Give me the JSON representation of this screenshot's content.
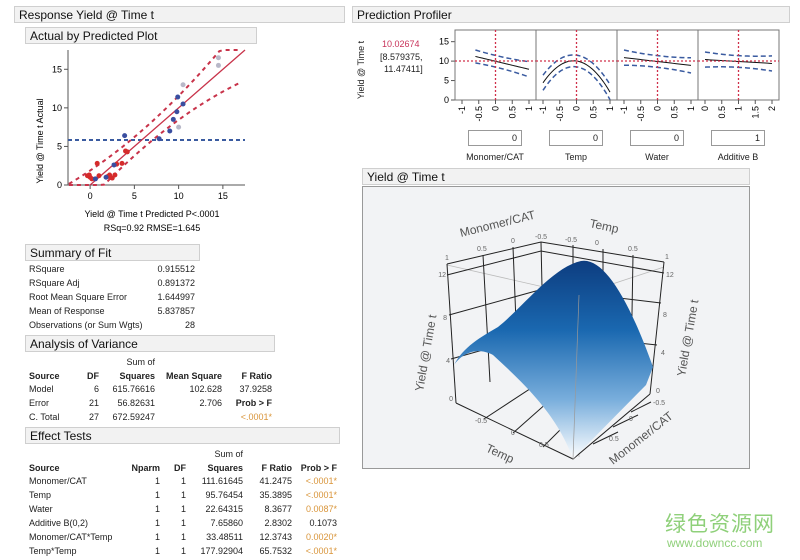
{
  "left": {
    "title": "Response Yield @ Time t",
    "plot_title": "Actual by Predicted Plot",
    "summary": {
      "title": "Summary of Fit",
      "rows": [
        {
          "label": "RSquare",
          "value": "0.915512"
        },
        {
          "label": "RSquare Adj",
          "value": "0.891372"
        },
        {
          "label": "Root Mean Square Error",
          "value": "1.644997"
        },
        {
          "label": "Mean of Response",
          "value": "5.837857"
        },
        {
          "label": "Observations (or Sum Wgts)",
          "value": "28"
        }
      ]
    },
    "anova": {
      "title": "Analysis of Variance",
      "sum_of": "Sum of",
      "headers": [
        "Source",
        "DF",
        "Squares",
        "Mean Square",
        "F Ratio"
      ],
      "rows": [
        [
          "Model",
          "6",
          "615.76616",
          "102.628",
          "37.9258"
        ],
        [
          "Error",
          "21",
          "56.82631",
          "2.706",
          "Prob > F"
        ],
        [
          "C. Total",
          "27",
          "672.59247",
          "",
          "<.0001*"
        ]
      ]
    },
    "effects": {
      "title": "Effect Tests",
      "sum_of": "Sum of",
      "headers": [
        "Source",
        "Nparm",
        "DF",
        "Squares",
        "F Ratio",
        "Prob > F"
      ],
      "rows": [
        [
          "Monomer/CAT",
          "1",
          "1",
          "111.61645",
          "41.2475",
          "<.0001*"
        ],
        [
          "Temp",
          "1",
          "1",
          "95.76454",
          "35.3895",
          "<.0001*"
        ],
        [
          "Water",
          "1",
          "1",
          "22.64315",
          "8.3677",
          "0.0087*"
        ],
        [
          "Additive B(0,2)",
          "1",
          "1",
          "7.65860",
          "2.8302",
          "0.1073"
        ],
        [
          "Monomer/CAT*Temp",
          "1",
          "1",
          "33.48511",
          "12.3743",
          "0.0020*"
        ],
        [
          "Temp*Temp",
          "1",
          "1",
          "177.92904",
          "65.7532",
          "<.0001*"
        ]
      ]
    }
  },
  "profiler": {
    "title": "Prediction Profiler",
    "ylabel": "Yield @ Time t",
    "prediction": "10.02674",
    "interval": "[8.579375,",
    "interval2": "11.47411]",
    "factors": [
      {
        "name": "Monomer/CAT",
        "value": "0"
      },
      {
        "name": "Temp",
        "value": "0"
      },
      {
        "name": "Water",
        "value": "0"
      },
      {
        "name": "Additive B",
        "value": "1"
      }
    ]
  },
  "surface": {
    "title": "Yield @ Time t",
    "z_label": "Yield @ Time t",
    "x_label": "Temp",
    "y_label": "Monomer/CAT"
  },
  "watermark": {
    "cn": "绿色资源网",
    "url": "www.downcc.com"
  },
  "colors": {
    "fit": "#c8334a",
    "mean": "#3a5ba0",
    "significant": "#d9953a",
    "prediction": "#c8335a",
    "surface_top": "#0d3d80",
    "surface_bottom": "#ffffff"
  },
  "chart_data": [
    {
      "type": "scatter",
      "title": "Actual by Predicted Plot",
      "xlabel": "Yield @ Time t Predicted P<.0001",
      "subtitle": "RSq=0.92 RMSE=1.645",
      "ylabel": "Yield @ Time t Actual",
      "xlim": [
        -2.5,
        17.5
      ],
      "ylim": [
        0,
        17.5
      ],
      "xticks": [
        "0",
        "5",
        "10",
        "15"
      ],
      "yticks": [
        "0",
        "5",
        "10",
        "15"
      ],
      "mean_line": 5.837857,
      "points": [
        [
          -0.3,
          1.2
        ],
        [
          0,
          1.0
        ],
        [
          0.2,
          0.8
        ],
        [
          -0.1,
          1.3
        ],
        [
          0.8,
          2.8
        ],
        [
          1.0,
          1.2
        ],
        [
          2.0,
          1.1
        ],
        [
          2.2,
          1.3
        ],
        [
          2.8,
          1.3
        ],
        [
          3.0,
          2.7
        ],
        [
          4.0,
          4.4
        ],
        [
          4.2,
          4.3
        ],
        [
          3.6,
          2.8
        ],
        [
          2.5,
          0.9
        ],
        [
          0.6,
          0.8
        ],
        [
          1.8,
          1.0
        ],
        [
          2.7,
          2.6
        ],
        [
          3.9,
          6.4
        ],
        [
          7.8,
          6.0
        ],
        [
          9.0,
          7.0
        ],
        [
          9.8,
          9.5
        ],
        [
          9.9,
          11.4
        ],
        [
          10.5,
          10.5
        ],
        [
          9.4,
          8.5
        ],
        [
          10.0,
          7.5
        ],
        [
          10.5,
          13.0
        ],
        [
          14.5,
          16.5
        ],
        [
          14.5,
          15.5
        ]
      ]
    },
    {
      "type": "line",
      "title": "Prediction Profiler",
      "ylim": [
        0,
        18
      ],
      "yticks": [
        "0",
        "5",
        "10",
        "15"
      ],
      "panels": [
        {
          "factor": "Monomer/CAT",
          "xlim": [
            -1,
            1
          ],
          "xticks": [
            "-1",
            "-0.5",
            "0",
            "0.5",
            "1"
          ],
          "current": 0,
          "curve": [
            [
              -0.6,
              11.2
            ],
            [
              1,
              7.9
            ]
          ],
          "band": 1.5
        },
        {
          "factor": "Temp",
          "xlim": [
            -1,
            1
          ],
          "xticks": [
            "-1",
            "-0.5",
            "0",
            "0.5",
            "1"
          ],
          "current": 0,
          "quad": [
            10.03,
            -1.2,
            -6.8
          ],
          "band": 1.5
        },
        {
          "factor": "Water",
          "xlim": [
            -1,
            1
          ],
          "xticks": [
            "-1",
            "-0.5",
            "0",
            "0.5",
            "1"
          ],
          "current": 0,
          "curve": [
            [
              -1,
              10.9
            ],
            [
              1,
              8.9
            ]
          ],
          "band": 1.5
        },
        {
          "factor": "Additive B",
          "xlim": [
            0,
            2
          ],
          "xticks": [
            "0",
            "0.5",
            "1",
            "1.5",
            "2"
          ],
          "current": 1,
          "curve": [
            [
              0,
              10.4
            ],
            [
              2,
              9.4
            ]
          ],
          "band": 1.5
        }
      ]
    },
    {
      "type": "surface",
      "zlim": [
        0,
        12
      ],
      "zticks": [
        "0",
        "4",
        "8",
        "12"
      ],
      "xticks": [
        "-1",
        "-0.5",
        "0",
        "0.5",
        "1"
      ],
      "yticks": [
        "-0.5",
        "0",
        "0.5",
        "1"
      ]
    }
  ]
}
